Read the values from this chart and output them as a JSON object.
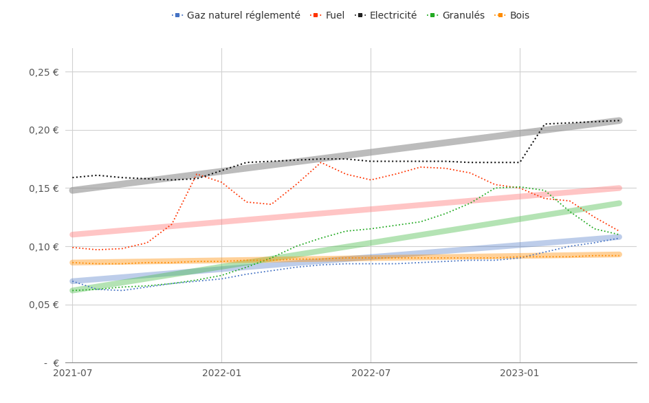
{
  "legend_labels": [
    "Gaz naturel réglementé",
    "Fuel",
    "Electricité",
    "Granulés",
    "Bois"
  ],
  "legend_colors": [
    "#4472C4",
    "#FF3300",
    "#222222",
    "#22AA22",
    "#FF8C00"
  ],
  "background_color": "#ffffff",
  "grid_color": "#d0d0d0",
  "yticks": [
    0.0,
    0.05,
    0.1,
    0.15,
    0.2,
    0.25
  ],
  "ytick_labels": [
    "-  €",
    "0,05 €",
    "0,10 €",
    "0,15 €",
    "0,20 €",
    "0,25 €"
  ],
  "xtick_positions": [
    0,
    6,
    12,
    18
  ],
  "xtick_labels": [
    "2021-07",
    "2022-01",
    "2022-07",
    "2023-01"
  ],
  "xlim": [
    -0.3,
    22.7
  ],
  "ylim": [
    0.0,
    0.27
  ],
  "series": {
    "gaz_trend": {
      "color": "#4472C4",
      "lw": 6,
      "alpha": 0.35,
      "linestyle": "solid",
      "x": [
        0,
        22
      ],
      "y": [
        0.07,
        0.108
      ]
    },
    "gaz_dotted": {
      "color": "#4472C4",
      "lw": 1.3,
      "linestyle": "dotted",
      "x": [
        0,
        1,
        2,
        3,
        4,
        5,
        6,
        7,
        8,
        9,
        10,
        11,
        12,
        13,
        14,
        15,
        16,
        17,
        18,
        19,
        20,
        21,
        22
      ],
      "y": [
        0.07,
        0.063,
        0.062,
        0.065,
        0.068,
        0.07,
        0.072,
        0.076,
        0.079,
        0.082,
        0.084,
        0.085,
        0.085,
        0.085,
        0.086,
        0.087,
        0.088,
        0.088,
        0.09,
        0.095,
        0.1,
        0.103,
        0.107
      ]
    },
    "fuel_trend": {
      "color": "#FF8080",
      "lw": 6,
      "alpha": 0.45,
      "linestyle": "solid",
      "x": [
        0,
        22
      ],
      "y": [
        0.11,
        0.15
      ]
    },
    "fuel_dotted": {
      "color": "#FF3300",
      "lw": 1.3,
      "linestyle": "dotted",
      "x": [
        0,
        1,
        2,
        3,
        4,
        5,
        6,
        7,
        8,
        9,
        10,
        11,
        12,
        13,
        14,
        15,
        16,
        17,
        18,
        19,
        20,
        21,
        22
      ],
      "y": [
        0.099,
        0.097,
        0.098,
        0.103,
        0.119,
        0.162,
        0.155,
        0.138,
        0.136,
        0.153,
        0.172,
        0.162,
        0.157,
        0.162,
        0.168,
        0.167,
        0.163,
        0.153,
        0.15,
        0.141,
        0.139,
        0.125,
        0.113
      ]
    },
    "elec_trend": {
      "color": "#909090",
      "lw": 7,
      "alpha": 0.6,
      "linestyle": "solid",
      "x": [
        0,
        22
      ],
      "y": [
        0.148,
        0.208
      ]
    },
    "elec_dotted": {
      "color": "#101010",
      "lw": 1.5,
      "linestyle": "dotted",
      "x": [
        0,
        1,
        2,
        3,
        4,
        5,
        6,
        7,
        8,
        9,
        10,
        11,
        12,
        13,
        14,
        15,
        16,
        17,
        18,
        19,
        20,
        21,
        22
      ],
      "y": [
        0.159,
        0.161,
        0.159,
        0.158,
        0.157,
        0.158,
        0.165,
        0.172,
        0.173,
        0.174,
        0.175,
        0.175,
        0.173,
        0.173,
        0.173,
        0.173,
        0.172,
        0.172,
        0.172,
        0.205,
        0.206,
        0.207,
        0.208
      ]
    },
    "granules_trend": {
      "color": "#44BB44",
      "lw": 6,
      "alpha": 0.4,
      "linestyle": "solid",
      "x": [
        0,
        22
      ],
      "y": [
        0.062,
        0.137
      ]
    },
    "granules_dotted": {
      "color": "#22AA22",
      "lw": 1.3,
      "linestyle": "dotted",
      "x": [
        0,
        1,
        2,
        3,
        4,
        5,
        6,
        7,
        8,
        9,
        10,
        11,
        12,
        13,
        14,
        15,
        16,
        17,
        18,
        19,
        20,
        21,
        22
      ],
      "y": [
        0.062,
        0.063,
        0.065,
        0.066,
        0.068,
        0.071,
        0.075,
        0.082,
        0.09,
        0.1,
        0.107,
        0.113,
        0.115,
        0.118,
        0.121,
        0.128,
        0.137,
        0.15,
        0.151,
        0.148,
        0.13,
        0.115,
        0.11
      ]
    },
    "bois_trend": {
      "color": "#FF8C00",
      "lw": 6,
      "alpha": 0.4,
      "linestyle": "solid",
      "x": [
        0,
        22
      ],
      "y": [
        0.086,
        0.093
      ]
    },
    "bois_dotted": {
      "color": "#FF8C00",
      "lw": 1.3,
      "linestyle": "dotted",
      "x": [
        0,
        1,
        2,
        3,
        4,
        5,
        6,
        7,
        8,
        9,
        10,
        11,
        12,
        13,
        14,
        15,
        16,
        17,
        18,
        19,
        20,
        21,
        22
      ],
      "y": [
        0.086,
        0.085,
        0.085,
        0.086,
        0.086,
        0.087,
        0.087,
        0.088,
        0.088,
        0.089,
        0.089,
        0.09,
        0.09,
        0.09,
        0.09,
        0.09,
        0.09,
        0.09,
        0.091,
        0.091,
        0.091,
        0.092,
        0.092
      ]
    }
  }
}
